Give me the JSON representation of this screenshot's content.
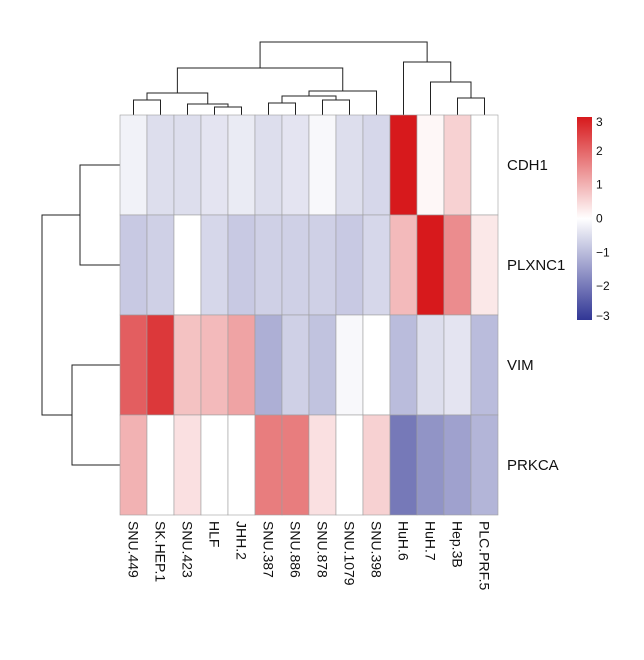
{
  "chart_data": {
    "type": "heatmap",
    "title": "",
    "rows": [
      "CDH1",
      "PLXNC1",
      "VIM",
      "PRKCA"
    ],
    "columns": [
      "SNU.449",
      "SK.HEP.1",
      "SNU.423",
      "HLF",
      "JHH.2",
      "SNU.387",
      "SNU.886",
      "SNU.878",
      "SNU.1079",
      "SNU.398",
      "HuH.6",
      "HuH.7",
      "Hep.3B",
      "PLC.PRF.5"
    ],
    "values": [
      [
        -0.2,
        -0.5,
        -0.5,
        -0.4,
        -0.3,
        -0.5,
        -0.4,
        -0.1,
        -0.5,
        -0.6,
        3.2,
        0.1,
        0.6,
        0.0
      ],
      [
        -0.8,
        -0.7,
        0.0,
        -0.6,
        -0.8,
        -0.7,
        -0.7,
        -0.7,
        -0.8,
        -0.6,
        0.9,
        3.1,
        1.5,
        0.3
      ],
      [
        2.1,
        2.6,
        0.8,
        0.9,
        1.2,
        -1.2,
        -0.7,
        -0.9,
        -0.1,
        0.0,
        -1.0,
        -0.5,
        -0.4,
        -1.0
      ],
      [
        1.0,
        0.0,
        0.4,
        0.0,
        0.0,
        1.7,
        1.7,
        0.4,
        0.0,
        0.6,
        -2.0,
        -1.6,
        -1.4,
        -1.1
      ]
    ],
    "colorbar": {
      "min": -3,
      "max": 3,
      "ticks": [
        3,
        2,
        1,
        0,
        -1,
        -2,
        -3
      ],
      "tick_labels": [
        "3",
        "2",
        "1",
        "0",
        "−1",
        "−2",
        "−3"
      ]
    },
    "colors": {
      "low": "#313695",
      "mid": "#ffffff",
      "high": "#d7191c",
      "cell_border": "#9e9e9e",
      "dendrogram": "#222222"
    },
    "row_dendrogram": true,
    "column_dendrogram": true
  }
}
